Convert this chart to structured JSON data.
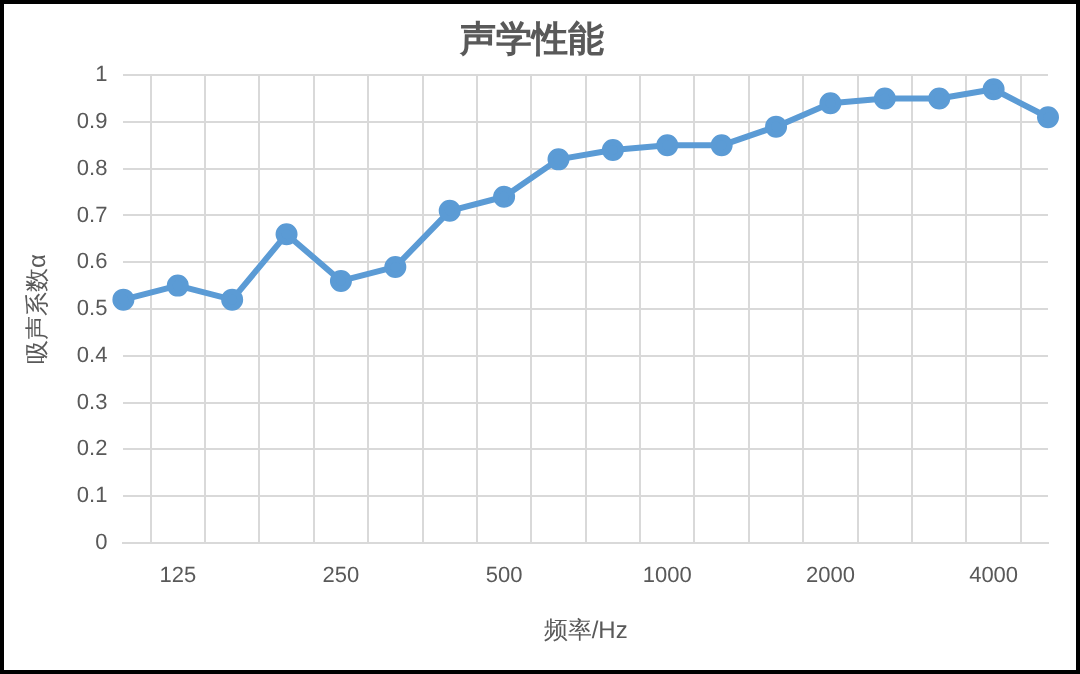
{
  "chart_data": {
    "type": "line",
    "title": "声学性能",
    "xlabel": "频率/Hz",
    "ylabel": "吸声系数α",
    "categories": [
      null,
      "125",
      null,
      null,
      "250",
      null,
      null,
      "500",
      null,
      null,
      "1000",
      null,
      null,
      "2000",
      null,
      null,
      "4000",
      null
    ],
    "series": [
      {
        "color": "#5b9bd5",
        "values": [
          0.52,
          0.55,
          0.52,
          0.66,
          0.56,
          0.59,
          0.71,
          0.74,
          0.82,
          0.84,
          0.85,
          0.85,
          0.89,
          0.94,
          0.95,
          0.95,
          0.97,
          0.91
        ]
      }
    ],
    "ylim": [
      0,
      1
    ],
    "yticks": [
      0,
      0.1,
      0.2,
      0.3,
      0.4,
      0.5,
      0.6,
      0.7,
      0.8,
      0.9,
      1
    ],
    "grid": true,
    "legend": false,
    "marker": "circle",
    "line_style": "solid"
  }
}
